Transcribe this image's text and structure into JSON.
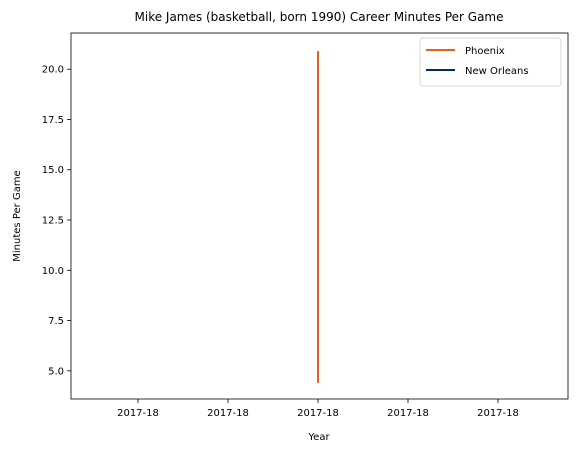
{
  "chart_data": {
    "type": "line",
    "title": "Mike James (basketball, born 1990) Career Minutes Per Game",
    "xlabel": "Year",
    "ylabel": "Minutes Per Game",
    "x_tick_labels": [
      "2017-18",
      "2017-18",
      "2017-18",
      "2017-18",
      "2017-18"
    ],
    "y_ticks": [
      5.0,
      7.5,
      10.0,
      12.5,
      15.0,
      17.5,
      20.0
    ],
    "y_tick_labels": [
      "5.0",
      "7.5",
      "10.0",
      "12.5",
      "15.0",
      "17.5",
      "20.0"
    ],
    "ylim": [
      3.6,
      21.8
    ],
    "series": [
      {
        "name": "Phoenix",
        "color": "#E56020",
        "x": [
          "2017-18",
          "2017-18"
        ],
        "y": [
          4.4,
          20.9
        ]
      },
      {
        "name": "New Orleans",
        "color": "#002B5C",
        "x": [],
        "y": []
      }
    ],
    "legend": {
      "position": "top-right"
    },
    "grid": false
  }
}
